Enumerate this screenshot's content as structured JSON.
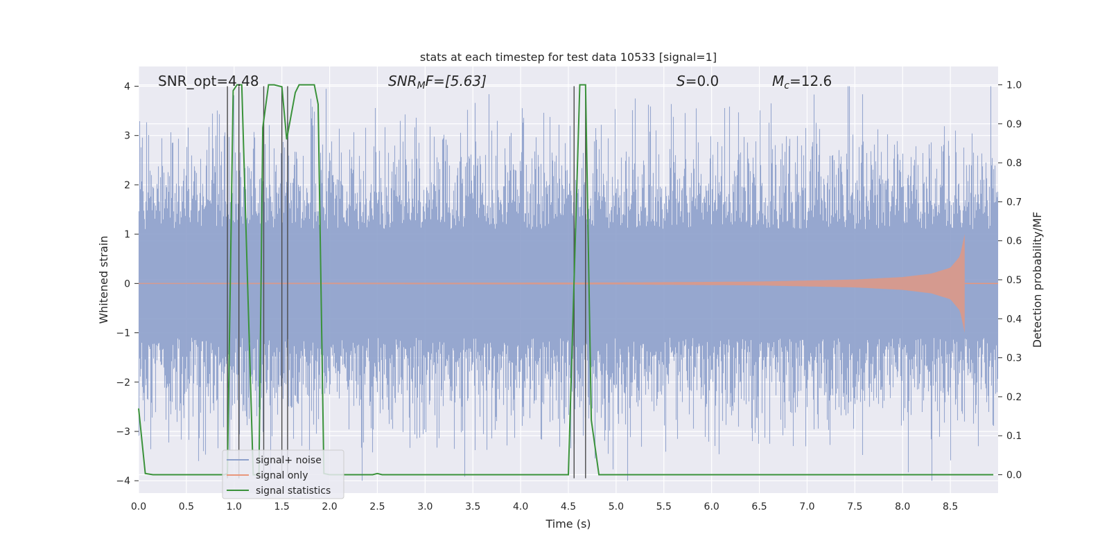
{
  "chart_data": {
    "type": "line",
    "title": "stats at each timestep for test data 10533 [signal=1]",
    "xlabel": "Time (s)",
    "ylabel_left": "Whitened strain",
    "ylabel_right": "Detection probability/MF",
    "xlim": [
      0.0,
      9.0
    ],
    "ylim_left": [
      -4.25,
      4.4
    ],
    "ylim_right": [
      -0.047,
      1.047
    ],
    "x_ticks": [
      "0.0",
      "0.5",
      "1.0",
      "1.5",
      "2.0",
      "2.5",
      "3.0",
      "3.5",
      "4.0",
      "4.5",
      "5.0",
      "5.5",
      "6.0",
      "6.5",
      "7.0",
      "7.5",
      "8.0",
      "8.5"
    ],
    "y_left_ticks": [
      "4",
      "3",
      "2",
      "1",
      "0",
      "−1",
      "−2",
      "−3",
      "−4"
    ],
    "y_right_ticks": [
      "1.0",
      "0.9",
      "0.8",
      "0.7",
      "0.6",
      "0.5",
      "0.4",
      "0.3",
      "0.2",
      "0.1",
      "0.0"
    ],
    "grid": true,
    "legend_position": "lower-left",
    "annotations": {
      "snr_opt": "SNR_opt=4.48",
      "snr_mf_main": "SNR",
      "snr_mf_sub": "M",
      "snr_mf_rest": "F=[5.63]",
      "s_italic": "S",
      "s_rest": "=0.0",
      "mc_main": "M",
      "mc_sub": "c",
      "mc_rest": "=12.6"
    },
    "series": [
      {
        "name": "signal+ noise",
        "color": "#8da0cb",
        "axis": "left",
        "noise_amplitude": 1.0,
        "peak": 4.0
      },
      {
        "name": "signal only",
        "color": "#e9967a",
        "axis": "left",
        "envelope": {
          "t": [
            0.0,
            5.0,
            6.5,
            7.5,
            8.0,
            8.3,
            8.5,
            8.6,
            8.65
          ],
          "amp": [
            0.01,
            0.02,
            0.04,
            0.08,
            0.13,
            0.2,
            0.32,
            0.55,
            1.0
          ]
        }
      },
      {
        "name": "signal statistics",
        "color": "#3a923a",
        "axis": "right",
        "x": [
          0.0,
          0.07,
          0.15,
          0.9,
          0.93,
          0.99,
          1.03,
          1.08,
          1.2,
          1.26,
          1.3,
          1.36,
          1.42,
          1.5,
          1.55,
          1.64,
          1.68,
          1.84,
          1.88,
          1.94,
          2.0,
          2.45,
          2.5,
          2.55,
          4.5,
          4.57,
          4.62,
          4.68,
          4.74,
          4.82,
          5.0,
          8.95
        ],
        "y": [
          0.17,
          0.003,
          0.0,
          0.0,
          0.003,
          0.985,
          1.0,
          1.0,
          0.0,
          0.0,
          0.89,
          1.0,
          1.0,
          0.995,
          0.86,
          0.98,
          1.0,
          1.0,
          0.95,
          0.003,
          0.0,
          0.0,
          0.003,
          0.0,
          0.0,
          0.58,
          1.0,
          1.0,
          0.14,
          0.0,
          0.0,
          0.0
        ]
      }
    ],
    "vertical_lines": [
      0.93,
      1.05,
      1.31,
      1.5,
      1.56,
      4.56,
      4.68
    ],
    "vertical_line_range_left": [
      -3.95,
      4.0
    ]
  }
}
